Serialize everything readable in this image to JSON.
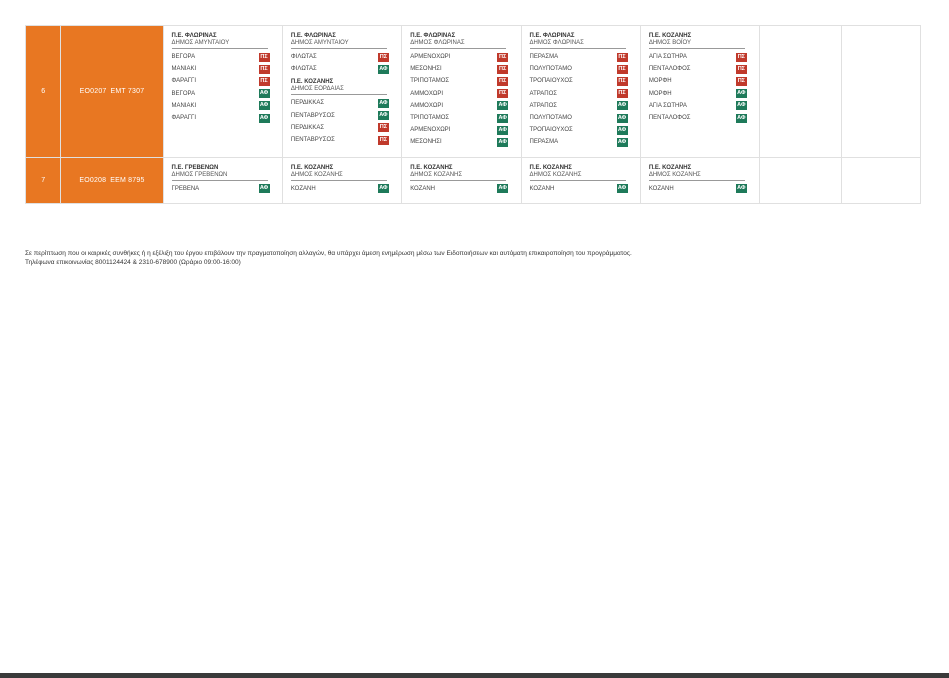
{
  "rows": [
    {
      "num": "6",
      "code": "ΕΟ0207",
      "plate": "ΕΜΤ 7307",
      "cols": [
        {
          "groups": [
            {
              "region": "Π.Ε. ΦΛΩΡΙΝΑΣ",
              "muni": "ΔΗΜΟΣ ΑΜΥΝΤΑΙΟΥ",
              "stops": [
                {
                  "name": "ΒΕΓΟΡΑ",
                  "badge": "ΠΣ",
                  "type": "red"
                },
                {
                  "name": "ΜΑΝΙΑΚΙ",
                  "badge": "ΠΣ",
                  "type": "red"
                },
                {
                  "name": "ΦΑΡΑΓΓΙ",
                  "badge": "ΠΣ",
                  "type": "red"
                },
                {
                  "name": "ΒΕΓΟΡΑ",
                  "badge": "ΑΦ",
                  "type": "green"
                },
                {
                  "name": "ΜΑΝΙΑΚΙ",
                  "badge": "ΑΦ",
                  "type": "green"
                },
                {
                  "name": "ΦΑΡΑΓΓΙ",
                  "badge": "ΑΦ",
                  "type": "green"
                }
              ]
            }
          ]
        },
        {
          "groups": [
            {
              "region": "Π.Ε. ΦΛΩΡΙΝΑΣ",
              "muni": "ΔΗΜΟΣ ΑΜΥΝΤΑΙΟΥ",
              "stops": [
                {
                  "name": "ΦΙΛΩΤΑΣ",
                  "badge": "ΠΣ",
                  "type": "red"
                },
                {
                  "name": "ΦΙΛΩΤΑΣ",
                  "badge": "ΑΦ",
                  "type": "green"
                }
              ]
            },
            {
              "region": "Π.Ε. ΚΟΖΑΝΗΣ",
              "muni": "ΔΗΜΟΣ ΕΟΡΔΑΙΑΣ",
              "stops": [
                {
                  "name": "ΠΕΡΔΙΚΚΑΣ",
                  "badge": "ΑΦ",
                  "type": "green"
                },
                {
                  "name": "ΠΕΝΤΑΒΡΥΣΟΣ",
                  "badge": "ΑΦ",
                  "type": "green"
                },
                {
                  "name": "ΠΕΡΔΙΚΚΑΣ",
                  "badge": "ΠΣ",
                  "type": "red"
                },
                {
                  "name": "ΠΕΝΤΑΒΡΥΣΟΣ",
                  "badge": "ΠΣ",
                  "type": "red"
                }
              ]
            }
          ]
        },
        {
          "groups": [
            {
              "region": "Π.Ε. ΦΛΩΡΙΝΑΣ",
              "muni": "ΔΗΜΟΣ ΦΛΩΡΙΝΑΣ",
              "stops": [
                {
                  "name": "ΑΡΜΕΝΟΧΩΡΙ",
                  "badge": "ΠΣ",
                  "type": "red"
                },
                {
                  "name": "ΜΕΣΟΝΗΣΙ",
                  "badge": "ΠΣ",
                  "type": "red"
                },
                {
                  "name": "ΤΡΙΠΟΤΑΜΟΣ",
                  "badge": "ΠΣ",
                  "type": "red"
                },
                {
                  "name": "ΑΜΜΟΧΩΡΙ",
                  "badge": "ΠΣ",
                  "type": "red"
                },
                {
                  "name": "ΑΜΜΟΧΩΡΙ",
                  "badge": "ΑΦ",
                  "type": "green"
                },
                {
                  "name": "ΤΡΙΠΟΤΑΜΟΣ",
                  "badge": "ΑΦ",
                  "type": "green"
                },
                {
                  "name": "ΑΡΜΕΝΟΧΩΡΙ",
                  "badge": "ΑΦ",
                  "type": "green"
                },
                {
                  "name": "ΜΕΣΟΝΗΣΙ",
                  "badge": "ΑΦ",
                  "type": "green"
                }
              ]
            }
          ]
        },
        {
          "groups": [
            {
              "region": "Π.Ε. ΦΛΩΡΙΝΑΣ",
              "muni": "ΔΗΜΟΣ ΦΛΩΡΙΝΑΣ",
              "stops": [
                {
                  "name": "ΠΕΡΑΣΜΑ",
                  "badge": "ΠΣ",
                  "type": "red"
                },
                {
                  "name": "ΠΟΛΥΠΟΤΑΜΟ",
                  "badge": "ΠΣ",
                  "type": "red"
                },
                {
                  "name": "ΤΡΟΠΑΙΟΥΧΟΣ",
                  "badge": "ΠΣ",
                  "type": "red"
                },
                {
                  "name": "ΑΤΡΑΠΟΣ",
                  "badge": "ΠΣ",
                  "type": "red"
                },
                {
                  "name": "ΑΤΡΑΠΟΣ",
                  "badge": "ΑΦ",
                  "type": "green"
                },
                {
                  "name": "ΠΟΛΥΠΟΤΑΜΟ",
                  "badge": "ΑΦ",
                  "type": "green"
                },
                {
                  "name": "ΤΡΟΠΑΙΟΥΧΟΣ",
                  "badge": "ΑΦ",
                  "type": "green"
                },
                {
                  "name": "ΠΕΡΑΣΜΑ",
                  "badge": "ΑΦ",
                  "type": "green"
                }
              ]
            }
          ]
        },
        {
          "groups": [
            {
              "region": "Π.Ε. ΚΟΖΑΝΗΣ",
              "muni": "ΔΗΜΟΣ ΒΟΪΟΥ",
              "stops": [
                {
                  "name": "ΑΓΙΑ ΣΩΤΗΡΑ",
                  "badge": "ΠΣ",
                  "type": "red"
                },
                {
                  "name": "ΠΕΝΤΑΛΟΦΟΣ",
                  "badge": "ΠΣ",
                  "type": "red"
                },
                {
                  "name": "ΜΟΡΦΗ",
                  "badge": "ΠΣ",
                  "type": "red"
                },
                {
                  "name": "ΜΟΡΦΗ",
                  "badge": "ΑΦ",
                  "type": "green"
                },
                {
                  "name": "ΑΓΙΑ ΣΩΤΗΡΑ",
                  "badge": "ΑΦ",
                  "type": "green"
                },
                {
                  "name": "ΠΕΝΤΑΛΟΦΟΣ",
                  "badge": "ΑΦ",
                  "type": "green"
                }
              ]
            }
          ]
        }
      ]
    },
    {
      "num": "7",
      "code": "ΕΟ0208",
      "plate": "ΕΕΜ 8795",
      "cols": [
        {
          "groups": [
            {
              "region": "Π.Ε. ΓΡΕΒΕΝΩΝ",
              "muni": "ΔΗΜΟΣ ΓΡΕΒΕΝΩΝ",
              "stops": [
                {
                  "name": "ΓΡΕΒΕΝΑ",
                  "badge": "ΑΦ",
                  "type": "green"
                }
              ]
            }
          ]
        },
        {
          "groups": [
            {
              "region": "Π.Ε. ΚΟΖΑΝΗΣ",
              "muni": "ΔΗΜΟΣ ΚΟΖΑΝΗΣ",
              "stops": [
                {
                  "name": "ΚΟΖΑΝΗ",
                  "badge": "ΑΦ",
                  "type": "green"
                }
              ]
            }
          ]
        },
        {
          "groups": [
            {
              "region": "Π.Ε. ΚΟΖΑΝΗΣ",
              "muni": "ΔΗΜΟΣ ΚΟΖΑΝΗΣ",
              "stops": [
                {
                  "name": "ΚΟΖΑΝΗ",
                  "badge": "ΑΦ",
                  "type": "green"
                }
              ]
            }
          ]
        },
        {
          "groups": [
            {
              "region": "Π.Ε. ΚΟΖΑΝΗΣ",
              "muni": "ΔΗΜΟΣ ΚΟΖΑΝΗΣ",
              "stops": [
                {
                  "name": "ΚΟΖΑΝΗ",
                  "badge": "ΑΦ",
                  "type": "green"
                }
              ]
            }
          ]
        },
        {
          "groups": [
            {
              "region": "Π.Ε. ΚΟΖΑΝΗΣ",
              "muni": "ΔΗΜΟΣ ΚΟΖΑΝΗΣ",
              "stops": [
                {
                  "name": "ΚΟΖΑΝΗ",
                  "badge": "ΑΦ",
                  "type": "green"
                }
              ]
            }
          ]
        }
      ]
    }
  ],
  "note": {
    "line1": "Σε περίπτωση που οι καιρικές συνθήκες ή η εξέλιξη του έργου επιβάλουν την πραγματοποίηση αλλαγών, θα υπάρχει άμεση ενημέρωση μέσω των Ειδοποιήσεων και αυτόματη επικαιροποίηση του προγράμματος.",
    "line2": "Τηλέφωνα επικοινωνίας 8001124424 & 2310-678900 (Ωράριο 09:00-16:00)"
  },
  "colors": {
    "accent": "#e87722",
    "pickup": "#c0392b",
    "dropoff": "#1e7a5a"
  }
}
